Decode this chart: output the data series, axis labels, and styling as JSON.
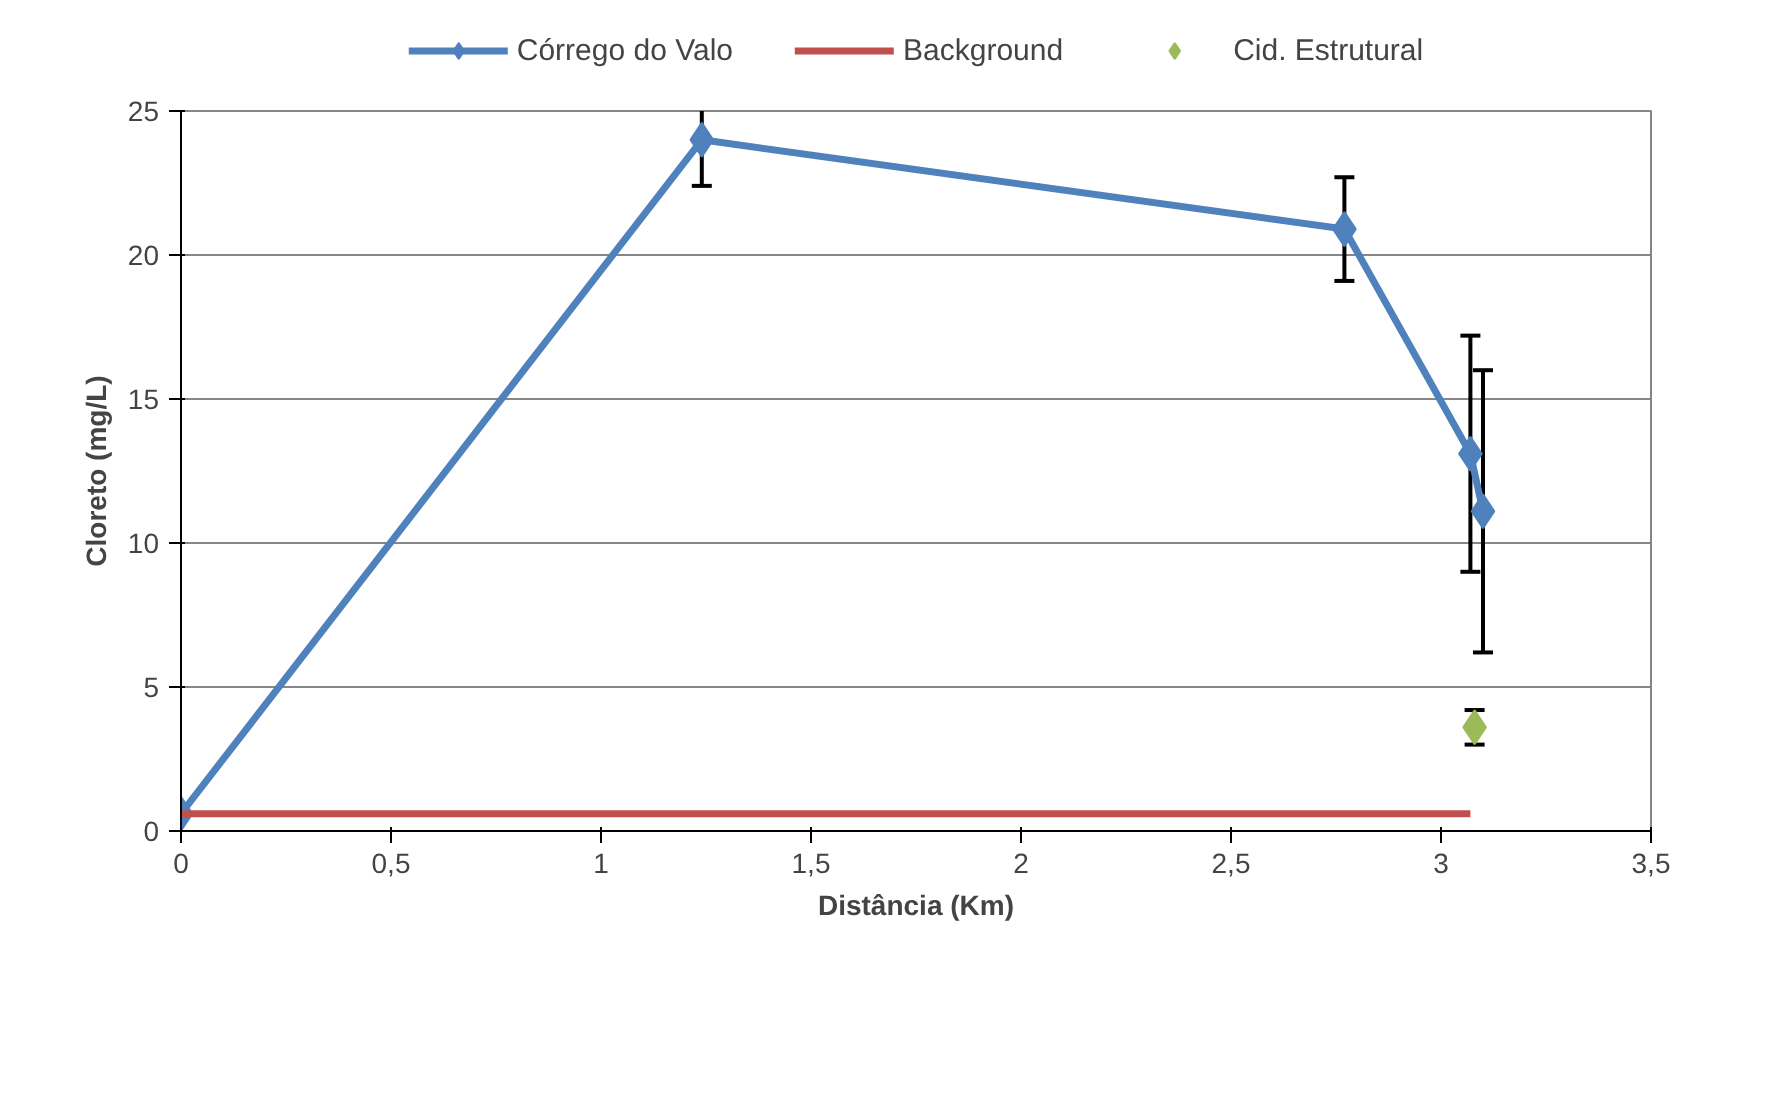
{
  "chart_data": {
    "type": "line",
    "xlabel": "Distância (Km)",
    "ylabel": "Cloreto (mg/L)",
    "xlim": [
      0,
      3.5
    ],
    "ylim": [
      0,
      25
    ],
    "xticks": [
      0,
      {
        "value": 0.5,
        "label": "0,5"
      },
      1,
      {
        "value": 1.5,
        "label": "1,5"
      },
      2,
      {
        "value": 2.5,
        "label": "2,5"
      },
      3,
      {
        "value": 3.5,
        "label": "3,5"
      }
    ],
    "yticks": [
      0,
      5,
      10,
      15,
      20,
      25
    ],
    "grid": "y",
    "legend": "top",
    "series": [
      {
        "name": "Córrego do Valo",
        "color": "#4f81bd",
        "marker": "diamond",
        "x": [
          0,
          1.24,
          2.77,
          3.07,
          3.1
        ],
        "values": [
          0.6,
          24.0,
          20.9,
          13.1,
          11.1
        ],
        "errors": [
          null,
          1.6,
          1.8,
          4.1,
          4.9
        ]
      },
      {
        "name": "Background",
        "color": "#c0504d",
        "marker": "none",
        "x": [
          0,
          3.07
        ],
        "values": [
          0.6,
          0.6
        ]
      },
      {
        "name": "Cid. Estrutural",
        "color": "#9bbb59",
        "marker": "diamond",
        "type": "scatter",
        "x": [
          3.08
        ],
        "values": [
          3.6
        ],
        "errors": [
          0.6
        ]
      }
    ]
  }
}
